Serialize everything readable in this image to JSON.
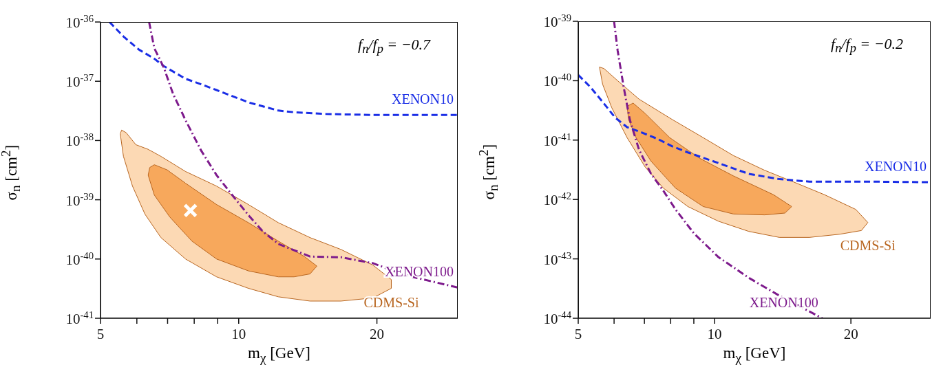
{
  "chart_data": [
    {
      "type": "line",
      "xlabel": "m$_{χ}$ [GeV]",
      "ylabel": "σ$_{n}$ [cm$^{2}$]",
      "log": "xy",
      "xlim": [
        5,
        30
      ],
      "xticks": [
        5,
        {
          "value": 6,
          "label": null
        },
        {
          "value": 7,
          "label": null
        },
        {
          "value": 8,
          "label": null
        },
        {
          "value": 9,
          "label": null
        },
        10,
        20
      ],
      "ylim": [
        1e-41,
        1e-36
      ],
      "yticks": [
        {
          "value": 1e-41,
          "label": "10$^{-41}$"
        },
        {
          "value": 1e-40,
          "label": "10$^{-40}$"
        },
        {
          "value": 1e-39,
          "label": "10$^{-39}$"
        },
        {
          "value": 1e-38,
          "label": "10$^{-38}$"
        },
        {
          "value": 1e-37,
          "label": "10$^{-37}$"
        },
        {
          "value": 1e-36,
          "label": "10$^{-36}$"
        }
      ],
      "series": [
        {
          "type": "area",
          "name": "CDMS-Si",
          "color": "#fcd9b4",
          "x": [
            5.56,
            5.69,
            5.97,
            6.35,
            6.77,
            7.66,
            8.95,
            10.5,
            12.2,
            14.3,
            16.7,
            19.6,
            21.5,
            21.5,
            19.6,
            16.7,
            14.3,
            12.2,
            10.5,
            8.95,
            7.66,
            6.77,
            6.25,
            5.87,
            5.61,
            5.52
          ],
          "values": [
            1.5e-38,
            1.35e-38,
            8.5e-39,
            7.1e-39,
            5.4e-39,
            3e-39,
            1.7e-39,
            8.3e-40,
            4.1e-40,
            2.3e-40,
            1.45e-40,
            7.9e-41,
            4.5e-41,
            3.2e-41,
            2.2e-41,
            1.95e-41,
            1.95e-41,
            2.3e-41,
            3.2e-41,
            5e-41,
            1e-40,
            2.3e-40,
            5.7e-40,
            1.7e-39,
            5.4e-39,
            1.3e-38
          ]
        },
        {
          "type": "area",
          "color": "#f7a85c",
          "x": [
            6.4,
            6.55,
            6.98,
            7.66,
            8.95,
            10.5,
            12.2,
            13.9,
            14.8,
            14.3,
            13.2,
            12.2,
            10.5,
            8.95,
            7.91,
            7.08,
            6.55,
            6.35
          ],
          "values": [
            3.5e-39,
            3.9e-39,
            3.2e-39,
            1.9e-39,
            8.3e-40,
            4.1e-40,
            2e-40,
            1.1e-40,
            7.6e-41,
            5.6e-41,
            5e-41,
            5e-41,
            6.3e-41,
            1e-40,
            2e-40,
            5.1e-40,
            1.2e-39,
            2.6e-39
          ]
        },
        {
          "name": "XENON10",
          "color": "#1a2ee6",
          "line_style": "dashed",
          "x": [
            5.23,
            5.61,
            6.07,
            6.55,
            6.87,
            7.66,
            8.28,
            8.95,
            10.5,
            12.2,
            13.2,
            15.5,
            19.6,
            22.9,
            30
          ],
          "values": [
            1e-36,
            5.7e-37,
            3.4e-37,
            2.4e-37,
            1.8e-37,
            1.1e-37,
            8.9e-38,
            7.1e-38,
            4.4e-38,
            3.2e-38,
            3e-38,
            2.8e-38,
            2.7e-38,
            2.7e-38,
            2.7e-38
          ]
        },
        {
          "name": "XENON100",
          "color": "#7d1a8c",
          "line_style": "dashdot",
          "x": [
            6.38,
            6.55,
            6.87,
            7.19,
            7.66,
            8.28,
            8.95,
            9.68,
            10.5,
            11.3,
            12.2,
            14.3,
            16.7,
            19.6,
            22.9,
            30
          ],
          "values": [
            1e-36,
            3.6e-37,
            1.7e-37,
            6.2e-38,
            2.2e-38,
            6.8e-39,
            2.6e-39,
            1.2e-39,
            5.5e-40,
            2.9e-40,
            1.8e-40,
            1.1e-40,
            1.07e-40,
            8.5e-41,
            5.4e-41,
            3.3e-41
          ]
        },
        {
          "type": "scatter",
          "color": "#ffffff",
          "marker": "cross",
          "x": [
            7.85
          ],
          "values": [
            6.6e-40
          ]
        }
      ],
      "annotations": [
        "f$_{n}$/f$_{p}$ = −0.7"
      ]
    },
    {
      "type": "line",
      "xlabel": "m$_{χ}$ [GeV]",
      "ylabel": "σ$_{n}$ [cm$^{2}$]",
      "log": "xy",
      "xlim": [
        5,
        30
      ],
      "xticks": [
        5,
        {
          "value": 6,
          "label": null
        },
        {
          "value": 7,
          "label": null
        },
        {
          "value": 8,
          "label": null
        },
        {
          "value": 9,
          "label": null
        },
        10,
        20
      ],
      "ylim": [
        1e-44,
        1e-39
      ],
      "yticks": [
        {
          "value": 1e-44,
          "label": "10$^{-44}$"
        },
        {
          "value": 1e-43,
          "label": "10$^{-43}$"
        },
        {
          "value": 1e-42,
          "label": "10$^{-42}$"
        },
        {
          "value": 1e-41,
          "label": "10$^{-41}$"
        },
        {
          "value": 1e-40,
          "label": "10$^{-40}$"
        },
        {
          "value": 1e-39,
          "label": "10$^{-39}$"
        }
      ],
      "series": [
        {
          "type": "area",
          "name": "CDMS-Si",
          "color": "#fcd9b4",
          "x": [
            5.57,
            5.7,
            6.11,
            6.81,
            8.08,
            9.44,
            11.0,
            12.9,
            15.0,
            17.5,
            20.5,
            21.8,
            21.1,
            18.9,
            16.2,
            13.9,
            11.9,
            10.2,
            8.73,
            7.71,
            7.03,
            6.41,
            5.93,
            5.66
          ],
          "values": [
            1.7e-40,
            1.6e-40,
            1e-40,
            4.9e-41,
            2.2e-41,
            1.1e-41,
            5.5e-42,
            3.1e-42,
            1.95e-42,
            1.2e-42,
            6.8e-43,
            4.1e-43,
            3e-43,
            2.6e-43,
            2.3e-43,
            2.3e-43,
            2.9e-43,
            4.3e-43,
            7.6e-43,
            1.55e-42,
            3.5e-42,
            1.1e-41,
            3.5e-41,
            8.7e-41
          ]
        },
        {
          "type": "area",
          "color": "#f7a85c",
          "x": [
            6.41,
            6.61,
            7.03,
            7.96,
            9.29,
            11.0,
            13.5,
            14.8,
            14.3,
            12.9,
            11.0,
            9.44,
            8.2,
            7.24,
            6.71,
            6.46
          ],
          "values": [
            3.7e-41,
            4.2e-41,
            2.8e-41,
            1.1e-41,
            4.9e-42,
            2.5e-42,
            1.2e-42,
            7.6e-43,
            5.9e-43,
            5.5e-43,
            5.7e-43,
            7.6e-43,
            1.55e-42,
            4.4e-42,
            1.1e-41,
            2.2e-41
          ]
        },
        {
          "name": "XENON10",
          "color": "#1a2ee6",
          "line_style": "dashed",
          "x": [
            5,
            5.32,
            5.66,
            6.03,
            6.41,
            6.81,
            7.48,
            8.08,
            8.73,
            10.2,
            11.9,
            13.9,
            16.2,
            18.9,
            22.1,
            30
          ],
          "values": [
            1.25e-40,
            7.8e-41,
            4.4e-41,
            2.4e-41,
            1.65e-41,
            1.4e-41,
            1.05e-41,
            7.8e-42,
            6.2e-42,
            4.1e-42,
            2.7e-42,
            2.2e-42,
            2e-42,
            2e-42,
            2e-42,
            1.95e-42
          ]
        },
        {
          "name": "XENON100",
          "color": "#7d1a8c",
          "line_style": "dashdot",
          "x": [
            6.0,
            6.11,
            6.3,
            6.5,
            6.81,
            7.24,
            7.71,
            8.2,
            9.0,
            10.2,
            11.9,
            13.9,
            17.3
          ],
          "values": [
            1e-39,
            3.2e-40,
            7.8e-41,
            2.2e-41,
            6.9e-42,
            2.7e-42,
            1.4e-42,
            6.8e-43,
            2.7e-43,
            1.07e-43,
            4.8e-44,
            2.4e-44,
            1e-44
          ]
        }
      ],
      "annotations": [
        "f$_{n}$/f$_{p}$ = −0.2"
      ]
    }
  ]
}
